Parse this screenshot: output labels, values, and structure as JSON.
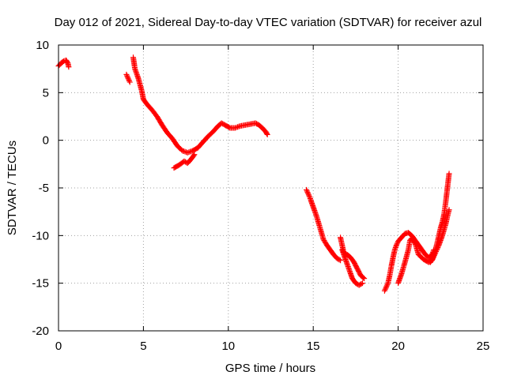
{
  "chart_data": {
    "type": "scatter",
    "title": "Day 012 of 2021, Sidereal Day-to-day VTEC variation (SDTVAR) for receiver azul",
    "xlabel": "GPS time / hours",
    "ylabel": "SDTVAR / TECUs",
    "xlim": [
      0,
      25
    ],
    "ylim": [
      -20,
      10
    ],
    "xticks": [
      0,
      5,
      10,
      15,
      20,
      25
    ],
    "yticks": [
      -20,
      -15,
      -10,
      -5,
      0,
      5,
      10
    ],
    "grid": true,
    "marker": "plus",
    "color": "#ff0000",
    "series": [
      {
        "name": "SDTVAR",
        "segments": [
          [
            [
              0.0,
              7.8
            ],
            [
              0.15,
              8.1
            ],
            [
              0.3,
              8.3
            ],
            [
              0.45,
              8.4
            ],
            [
              0.55,
              8.1
            ],
            [
              0.6,
              7.7
            ]
          ],
          [
            [
              4.0,
              6.9
            ],
            [
              4.1,
              6.5
            ],
            [
              4.2,
              6.1
            ]
          ],
          [
            [
              4.4,
              8.7
            ],
            [
              4.5,
              7.5
            ],
            [
              4.7,
              6.5
            ],
            [
              4.9,
              5.2
            ],
            [
              5.0,
              4.3
            ],
            [
              5.2,
              3.8
            ],
            [
              5.5,
              3.2
            ],
            [
              5.8,
              2.5
            ],
            [
              6.1,
              1.6
            ],
            [
              6.4,
              0.8
            ],
            [
              6.7,
              0.2
            ],
            [
              7.0,
              -0.6
            ],
            [
              7.3,
              -1.1
            ],
            [
              7.6,
              -1.3
            ],
            [
              7.9,
              -1.1
            ],
            [
              8.2,
              -0.8
            ],
            [
              8.5,
              -0.2
            ],
            [
              8.8,
              0.4
            ],
            [
              9.1,
              0.9
            ],
            [
              9.4,
              1.5
            ],
            [
              9.6,
              1.8
            ],
            [
              9.8,
              1.6
            ],
            [
              10.1,
              1.3
            ],
            [
              10.4,
              1.3
            ],
            [
              10.7,
              1.5
            ],
            [
              11.0,
              1.6
            ],
            [
              11.3,
              1.7
            ],
            [
              11.6,
              1.8
            ],
            [
              11.8,
              1.6
            ],
            [
              12.0,
              1.3
            ],
            [
              12.2,
              0.9
            ],
            [
              12.3,
              0.6
            ]
          ],
          [
            [
              6.8,
              -2.9
            ],
            [
              7.1,
              -2.6
            ],
            [
              7.4,
              -2.2
            ],
            [
              7.6,
              -2.4
            ],
            [
              7.8,
              -2.0
            ],
            [
              8.0,
              -1.5
            ]
          ],
          [
            [
              14.6,
              -5.2
            ],
            [
              14.8,
              -6.0
            ],
            [
              15.0,
              -7.0
            ],
            [
              15.2,
              -8.0
            ],
            [
              15.4,
              -9.2
            ],
            [
              15.6,
              -10.4
            ],
            [
              15.8,
              -11.0
            ],
            [
              16.0,
              -11.5
            ],
            [
              16.2,
              -12.0
            ],
            [
              16.4,
              -12.4
            ],
            [
              16.6,
              -12.6
            ]
          ],
          [
            [
              16.6,
              -10.2
            ],
            [
              16.7,
              -11.0
            ],
            [
              16.8,
              -11.8
            ],
            [
              17.0,
              -12.0
            ],
            [
              17.2,
              -12.3
            ],
            [
              17.4,
              -12.8
            ],
            [
              17.6,
              -13.5
            ],
            [
              17.8,
              -14.2
            ],
            [
              18.0,
              -14.5
            ]
          ],
          [
            [
              16.7,
              -11.5
            ],
            [
              16.9,
              -12.5
            ],
            [
              17.1,
              -13.5
            ],
            [
              17.3,
              -14.5
            ],
            [
              17.5,
              -15.0
            ],
            [
              17.7,
              -15.2
            ],
            [
              17.9,
              -15.0
            ]
          ],
          [
            [
              19.2,
              -15.8
            ],
            [
              19.4,
              -15.0
            ],
            [
              19.5,
              -14.2
            ],
            [
              19.6,
              -13.2
            ],
            [
              19.7,
              -12.3
            ],
            [
              19.8,
              -11.5
            ],
            [
              19.9,
              -11.0
            ],
            [
              20.0,
              -10.6
            ],
            [
              20.2,
              -10.2
            ],
            [
              20.4,
              -9.8
            ],
            [
              20.6,
              -9.7
            ],
            [
              20.8,
              -10.0
            ],
            [
              21.0,
              -10.5
            ],
            [
              21.2,
              -11.0
            ],
            [
              21.4,
              -11.5
            ],
            [
              21.6,
              -12.0
            ],
            [
              21.8,
              -12.3
            ],
            [
              22.0,
              -12.0
            ],
            [
              22.1,
              -11.5
            ]
          ],
          [
            [
              20.0,
              -15.0
            ],
            [
              20.2,
              -14.0
            ],
            [
              20.4,
              -12.8
            ],
            [
              20.6,
              -11.5
            ],
            [
              20.7,
              -10.5
            ],
            [
              20.8,
              -10.3
            ],
            [
              21.0,
              -10.8
            ],
            [
              21.2,
              -12.0
            ],
            [
              21.5,
              -12.5
            ],
            [
              21.8,
              -12.8
            ],
            [
              22.0,
              -12.6
            ],
            [
              22.2,
              -11.8
            ],
            [
              22.4,
              -11.0
            ],
            [
              22.6,
              -10.0
            ],
            [
              22.8,
              -8.8
            ],
            [
              22.9,
              -8.0
            ],
            [
              23.0,
              -7.3
            ]
          ],
          [
            [
              21.9,
              -12.8
            ],
            [
              22.0,
              -12.5
            ],
            [
              22.2,
              -11.5
            ],
            [
              22.4,
              -10.0
            ],
            [
              22.5,
              -9.2
            ],
            [
              22.6,
              -8.6
            ],
            [
              22.7,
              -7.8
            ],
            [
              22.8,
              -6.5
            ],
            [
              22.9,
              -5.0
            ],
            [
              23.0,
              -3.5
            ]
          ]
        ]
      }
    ]
  }
}
